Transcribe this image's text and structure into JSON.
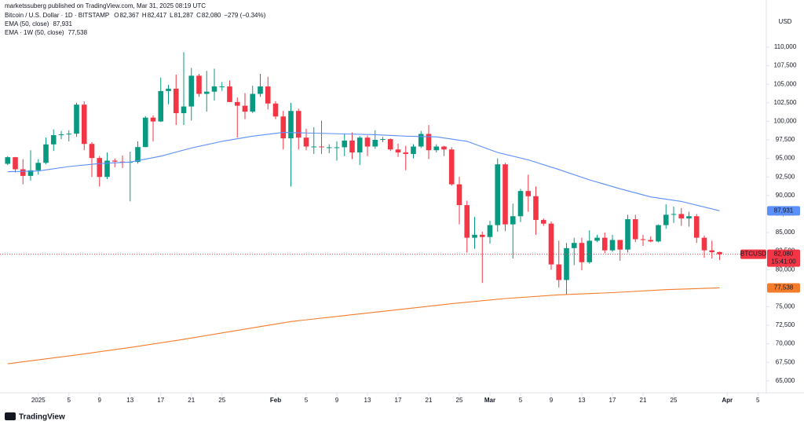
{
  "chart_data": {
    "type": "candlestick",
    "header": "marketssuberg published on TradingView.com, Mar 31, 2025 08:19 UTC",
    "title": "Bitcoin / U.S. Dollar · 1D · BITSTAMP",
    "ohlc": [
      {
        "label": "O",
        "value": "82,367"
      },
      {
        "label": "H",
        "value": "82,417"
      },
      {
        "label": "L",
        "value": "81,287"
      },
      {
        "label": "C",
        "value": "82,080"
      }
    ],
    "change": "−279 (−0.34%)",
    "currency": "USD",
    "symbol": "BTCUSD",
    "last_price": {
      "value": 82080,
      "label": "82,080"
    },
    "countdown": "15:41:00",
    "footer": "TradingView",
    "up_color": "#089981",
    "down_color": "#f23645",
    "grid": false,
    "x": [
      "2024-12-28",
      "2024-12-29",
      "2024-12-30",
      "2024-12-31",
      "2025-01-01",
      "2025-01-02",
      "2025-01-03",
      "2025-01-04",
      "2025-01-05",
      "2025-01-06",
      "2025-01-07",
      "2025-01-08",
      "2025-01-09",
      "2025-01-10",
      "2025-01-11",
      "2025-01-12",
      "2025-01-13",
      "2025-01-14",
      "2025-01-15",
      "2025-01-16",
      "2025-01-17",
      "2025-01-18",
      "2025-01-19",
      "2025-01-20",
      "2025-01-21",
      "2025-01-22",
      "2025-01-23",
      "2025-01-24",
      "2025-01-25",
      "2025-01-26",
      "2025-01-27",
      "2025-01-28",
      "2025-01-29",
      "2025-01-30",
      "2025-01-31",
      "2025-02-01",
      "2025-02-02",
      "2025-02-03",
      "2025-02-04",
      "2025-02-05",
      "2025-02-06",
      "2025-02-07",
      "2025-02-08",
      "2025-02-09",
      "2025-02-10",
      "2025-02-11",
      "2025-02-12",
      "2025-02-13",
      "2025-02-14",
      "2025-02-15",
      "2025-02-16",
      "2025-02-17",
      "2025-02-18",
      "2025-02-19",
      "2025-02-20",
      "2025-02-21",
      "2025-02-22",
      "2025-02-23",
      "2025-02-24",
      "2025-02-25",
      "2025-02-26",
      "2025-02-27",
      "2025-02-28",
      "2025-03-01",
      "2025-03-02",
      "2025-03-03",
      "2025-03-04",
      "2025-03-05",
      "2025-03-06",
      "2025-03-07",
      "2025-03-08",
      "2025-03-09",
      "2025-03-10",
      "2025-03-11",
      "2025-03-12",
      "2025-03-13",
      "2025-03-14",
      "2025-03-15",
      "2025-03-16",
      "2025-03-17",
      "2025-03-18",
      "2025-03-19",
      "2025-03-20",
      "2025-03-21",
      "2025-03-22",
      "2025-03-23",
      "2025-03-24",
      "2025-03-25",
      "2025-03-26",
      "2025-03-27",
      "2025-03-28",
      "2025-03-29",
      "2025-03-30",
      "2025-03-31"
    ],
    "open": [
      94270,
      95160,
      93530,
      92640,
      93390,
      94400,
      96890,
      98130,
      98240,
      98330,
      102250,
      96950,
      95050,
      92500,
      94700,
      94560,
      94500,
      94520,
      96530,
      100500,
      99980,
      104080,
      104400,
      101100,
      102000,
      106150,
      103700,
      104000,
      104700,
      104700,
      102600,
      102100,
      101300,
      103700,
      104700,
      102400,
      100650,
      97700,
      101400,
      97800,
      96600,
      96600,
      96500,
      96500,
      96500,
      97400,
      95800,
      97800,
      96600,
      97500,
      97600,
      96200,
      95800,
      95600,
      96600,
      98300,
      96100,
      96600,
      96200,
      91500,
      88700,
      84300,
      84700,
      84400,
      86000,
      94200,
      86100,
      87200,
      90600,
      89900,
      86700,
      86200,
      80700,
      78600,
      82900,
      83600,
      81000,
      83900,
      84300,
      82600,
      84000,
      82700,
      86800,
      84100,
      84000,
      83800,
      86000,
      87400,
      87500,
      86900,
      87200,
      84300,
      82600,
      82367
    ],
    "high": [
      95300,
      95200,
      94900,
      96100,
      94900,
      97800,
      98900,
      98700,
      98800,
      102500,
      102700,
      97200,
      95300,
      95800,
      95000,
      95400,
      95900,
      97300,
      100700,
      100800,
      105900,
      104900,
      106300,
      109300,
      107200,
      106400,
      106800,
      107100,
      105300,
      105500,
      103200,
      103800,
      104800,
      106400,
      106000,
      102700,
      101400,
      102500,
      101700,
      99000,
      99200,
      100100,
      96900,
      97300,
      98300,
      98500,
      98000,
      98100,
      98800,
      97900,
      97700,
      97000,
      96700,
      96900,
      98700,
      99500,
      96900,
      96700,
      96500,
      92500,
      89300,
      87100,
      85100,
      86600,
      95000,
      94400,
      88900,
      90900,
      92800,
      91200,
      86900,
      86500,
      83900,
      83600,
      84300,
      84300,
      85300,
      84700,
      85000,
      84700,
      84000,
      87400,
      87400,
      84700,
      84500,
      86100,
      88800,
      88500,
      88300,
      87800,
      87500,
      84600,
      83900,
      82417
    ],
    "low": [
      94100,
      93100,
      91500,
      92000,
      92800,
      94200,
      96000,
      97600,
      97300,
      97900,
      96100,
      92500,
      91200,
      92200,
      93800,
      93700,
      89200,
      94300,
      96500,
      97300,
      99900,
      102300,
      99500,
      99500,
      100100,
      103300,
      101300,
      102800,
      104100,
      102600,
      97800,
      100300,
      101100,
      103300,
      101600,
      100300,
      96200,
      91200,
      96200,
      96100,
      95600,
      95600,
      95700,
      94700,
      95300,
      94900,
      94100,
      95300,
      96300,
      97200,
      96000,
      95200,
      93400,
      95000,
      96400,
      94900,
      95800,
      95300,
      91300,
      86100,
      82300,
      82800,
      78200,
      83500,
      85100,
      85200,
      81500,
      86400,
      87800,
      84700,
      85900,
      80000,
      77600,
      76600,
      80600,
      79900,
      80800,
      83700,
      82200,
      82400,
      81200,
      82300,
      83700,
      83200,
      83700,
      83700,
      85500,
      86300,
      85900,
      85800,
      83600,
      81600,
      81500,
      81287
    ],
    "close": [
      95160,
      93530,
      92640,
      93390,
      94400,
      96890,
      98130,
      98240,
      98330,
      102250,
      96950,
      95050,
      92500,
      94700,
      94560,
      94500,
      94520,
      96530,
      100500,
      99980,
      104080,
      104400,
      101100,
      102000,
      106150,
      103700,
      104000,
      104700,
      104700,
      102600,
      102100,
      101300,
      103700,
      104700,
      102400,
      100650,
      97700,
      101400,
      97800,
      96600,
      96600,
      96500,
      96500,
      96500,
      97400,
      95800,
      97800,
      96600,
      97500,
      97600,
      96200,
      95800,
      95600,
      96600,
      98300,
      96100,
      96600,
      96200,
      91500,
      88700,
      84300,
      84700,
      84400,
      86000,
      94200,
      86100,
      87200,
      90600,
      89900,
      86700,
      86200,
      80700,
      78600,
      82900,
      83600,
      81000,
      83900,
      84300,
      82600,
      84000,
      82700,
      86800,
      84100,
      84000,
      83800,
      86000,
      87400,
      87500,
      86900,
      87200,
      84300,
      82600,
      82350,
      82080
    ],
    "series": [
      {
        "name": "EMA (50, close)",
        "color": "#5b8ff9",
        "last_label": "87,931",
        "x": [
          "2024-12-28",
          "2025-01-01",
          "2025-01-05",
          "2025-01-09",
          "2025-01-13",
          "2025-01-17",
          "2025-01-21",
          "2025-01-25",
          "2025-01-29",
          "2025-02-02",
          "2025-02-06",
          "2025-02-10",
          "2025-02-14",
          "2025-02-18",
          "2025-02-22",
          "2025-02-26",
          "2025-03-02",
          "2025-03-06",
          "2025-03-10",
          "2025-03-14",
          "2025-03-18",
          "2025-03-22",
          "2025-03-26",
          "2025-03-31"
        ],
        "values": [
          93200,
          93300,
          93900,
          94300,
          94500,
          95300,
          96400,
          97300,
          98000,
          98500,
          98400,
          98300,
          98200,
          98000,
          97900,
          97300,
          95800,
          94800,
          93500,
          92100,
          90900,
          89800,
          89200,
          87931
        ]
      },
      {
        "name": "EMA · 1W (50, close)",
        "color": "#f57c2b",
        "last_label": "77,538",
        "x": [
          "2024-12-28",
          "2025-01-06",
          "2025-01-13",
          "2025-01-20",
          "2025-01-27",
          "2025-02-03",
          "2025-02-10",
          "2025-02-17",
          "2025-02-24",
          "2025-03-03",
          "2025-03-10",
          "2025-03-17",
          "2025-03-24",
          "2025-03-31"
        ],
        "values": [
          67300,
          68500,
          69500,
          70600,
          71800,
          73000,
          73800,
          74600,
          75400,
          76100,
          76600,
          76900,
          77300,
          77538
        ]
      }
    ],
    "xlim": [
      "2024-12-27",
      "2025-04-06"
    ],
    "xticks": [
      {
        "value": "2025-01-01",
        "label": "2025"
      },
      {
        "value": "2025-01-05",
        "label": "5"
      },
      {
        "value": "2025-01-09",
        "label": "9"
      },
      {
        "value": "2025-01-13",
        "label": "13"
      },
      {
        "value": "2025-01-17",
        "label": "17"
      },
      {
        "value": "2025-01-21",
        "label": "21"
      },
      {
        "value": "2025-01-25",
        "label": "25"
      },
      {
        "value": "2025-02-01",
        "label": "Feb"
      },
      {
        "value": "2025-02-05",
        "label": "5"
      },
      {
        "value": "2025-02-09",
        "label": "9"
      },
      {
        "value": "2025-02-13",
        "label": "13"
      },
      {
        "value": "2025-02-17",
        "label": "17"
      },
      {
        "value": "2025-02-21",
        "label": "21"
      },
      {
        "value": "2025-02-25",
        "label": "25"
      },
      {
        "value": "2025-03-01",
        "label": "Mar"
      },
      {
        "value": "2025-03-05",
        "label": "5"
      },
      {
        "value": "2025-03-09",
        "label": "9"
      },
      {
        "value": "2025-03-13",
        "label": "13"
      },
      {
        "value": "2025-03-17",
        "label": "17"
      },
      {
        "value": "2025-03-21",
        "label": "21"
      },
      {
        "value": "2025-03-25",
        "label": "25"
      },
      {
        "value": "2025-04-01",
        "label": "Apr"
      },
      {
        "value": "2025-04-05",
        "label": "5"
      }
    ],
    "ylim": [
      63390,
      114240
    ],
    "yticks": [
      {
        "value": 65000,
        "label": "65,000"
      },
      {
        "value": 67500,
        "label": "67,500"
      },
      {
        "value": 70000,
        "label": "70,000"
      },
      {
        "value": 72500,
        "label": "72,500"
      },
      {
        "value": 75000,
        "label": "75,000"
      },
      {
        "value": 77500,
        "label": "77,500"
      },
      {
        "value": 80000,
        "label": "80,000"
      },
      {
        "value": 82500,
        "label": "82,500"
      },
      {
        "value": 85000,
        "label": "85,000"
      },
      {
        "value": 87500,
        "label": "87,500"
      },
      {
        "value": 90000,
        "label": "90,000"
      },
      {
        "value": 92500,
        "label": "92,500"
      },
      {
        "value": 95000,
        "label": "95,000"
      },
      {
        "value": 97500,
        "label": "97,500"
      },
      {
        "value": 100000,
        "label": "100,000"
      },
      {
        "value": 102500,
        "label": "102,500"
      },
      {
        "value": 105000,
        "label": "105,000"
      },
      {
        "value": 107500,
        "label": "107,500"
      },
      {
        "value": 110000,
        "label": "110,000"
      }
    ]
  }
}
